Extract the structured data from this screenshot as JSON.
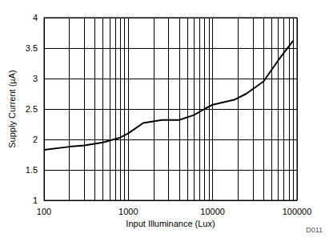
{
  "chart_data": {
    "type": "line",
    "x_label": "Input Illuminance (Lux)",
    "y_label": "Supply Current (µA)",
    "x": [
      100,
      200,
      300,
      500,
      800,
      1000,
      1500,
      2500,
      4000,
      6000,
      8000,
      10000,
      18000,
      25000,
      40000,
      60000,
      90000
    ],
    "values": [
      1.83,
      1.88,
      1.9,
      1.95,
      2.03,
      2.1,
      2.27,
      2.32,
      2.32,
      2.4,
      2.5,
      2.57,
      2.65,
      2.75,
      2.95,
      3.3,
      3.62
    ],
    "color": "#000000",
    "xlim": [
      100,
      100000
    ],
    "xticks": [
      100,
      1000,
      10000,
      100000
    ],
    "ylim": [
      1,
      4
    ],
    "yticks": [
      1,
      1.5,
      2,
      2.5,
      3,
      3.5,
      4
    ],
    "log": "x",
    "grid": true,
    "annotations": [
      "D011"
    ]
  }
}
